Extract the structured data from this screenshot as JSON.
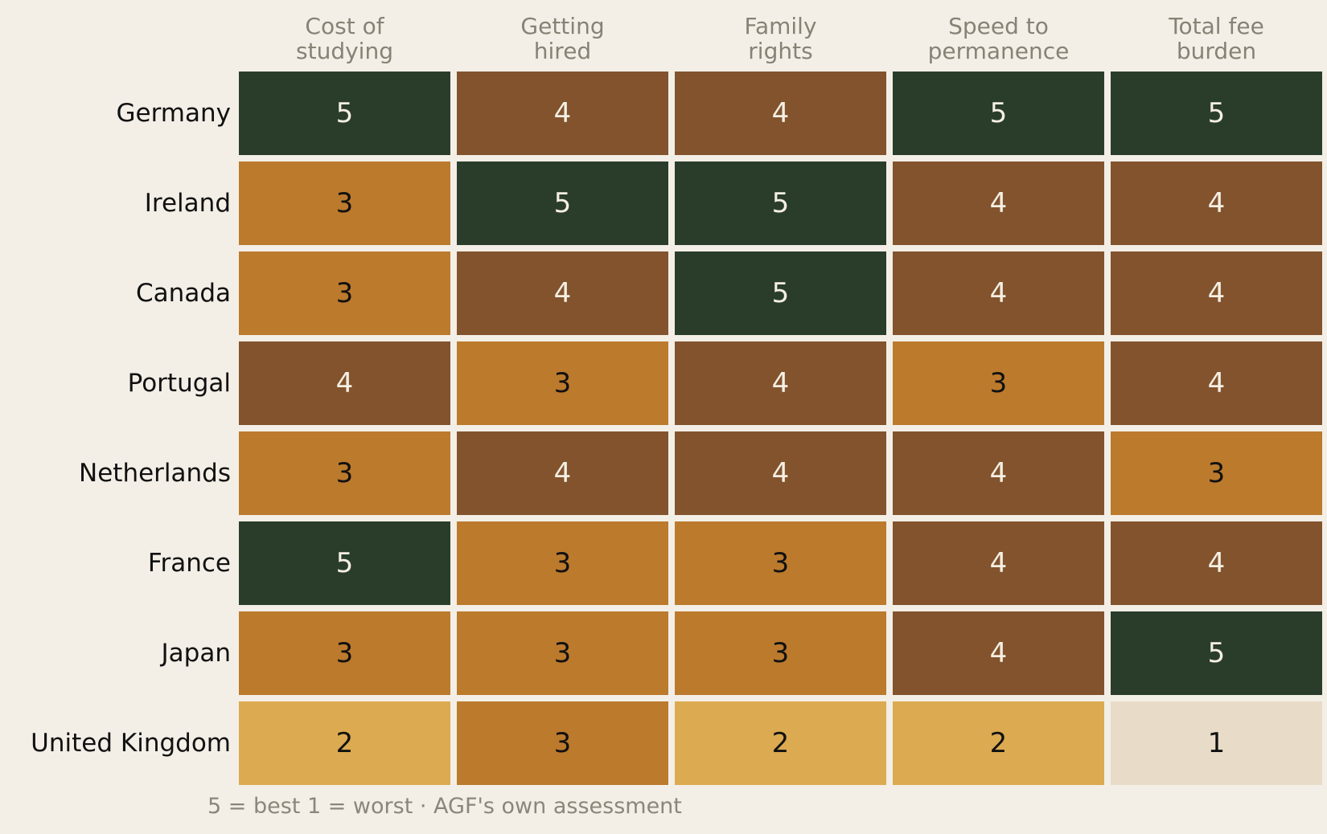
{
  "chart_data": {
    "type": "heatmap",
    "title": "",
    "columns": [
      [
        "Cost of",
        "studying"
      ],
      [
        "Getting",
        "hired"
      ],
      [
        "Family",
        "rights"
      ],
      [
        "Speed to",
        "permanence"
      ],
      [
        "Total fee",
        "burden"
      ]
    ],
    "rows": [
      "Germany",
      "Ireland",
      "Canada",
      "Portugal",
      "Netherlands",
      "France",
      "Japan",
      "United Kingdom"
    ],
    "values": [
      [
        5,
        4,
        4,
        5,
        5
      ],
      [
        3,
        5,
        5,
        4,
        4
      ],
      [
        3,
        4,
        5,
        4,
        4
      ],
      [
        4,
        3,
        4,
        3,
        4
      ],
      [
        3,
        4,
        4,
        4,
        3
      ],
      [
        5,
        3,
        3,
        4,
        4
      ],
      [
        3,
        3,
        3,
        4,
        5
      ],
      [
        2,
        3,
        2,
        2,
        1
      ]
    ],
    "scale": [
      1,
      5
    ],
    "colors": {
      "1": "#e8dcc8",
      "2": "#dcaa50",
      "3": "#bc7a2d",
      "4": "#82532d",
      "5": "#2a3d2b"
    },
    "text_colors": {
      "1": "#111111",
      "2": "#111111",
      "3": "#111111",
      "4": "#f5efe3",
      "5": "#f5efe3"
    },
    "legend": "5 = best   1 = worst   ·   AGF's own assessment"
  }
}
